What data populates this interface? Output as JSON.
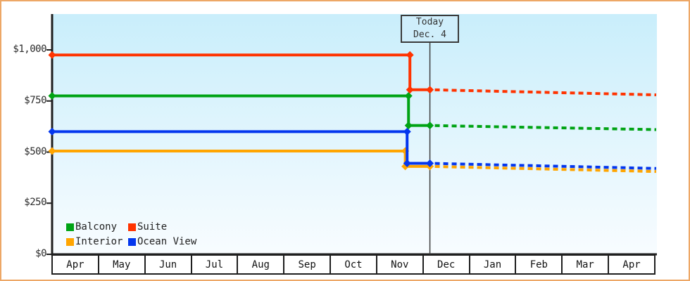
{
  "window": {
    "frame_border_color": "#eda766",
    "background_color": "#ffffff",
    "axis_color": "#1f1f1f",
    "today_line_color": "#3d3d3d"
  },
  "chart_data": {
    "type": "line",
    "title": "",
    "x_categories": [
      "Apr",
      "May",
      "Jun",
      "Jul",
      "Aug",
      "Sep",
      "Oct",
      "Nov",
      "Dec",
      "Jan",
      "Feb",
      "Mar",
      "Apr"
    ],
    "y_ticks": [
      {
        "value": 0,
        "label": "$0"
      },
      {
        "value": 250,
        "label": "$250"
      },
      {
        "value": 500,
        "label": "$500"
      },
      {
        "value": 750,
        "label": "$750"
      },
      {
        "value": 1000,
        "label": "$1,000"
      }
    ],
    "ylim": [
      0,
      1175
    ],
    "grid": false,
    "legend_position": "bottom-left",
    "plot_background": {
      "top": "#c9eefb",
      "bottom": "#f8fcff"
    },
    "today_annotation": {
      "line1": "Today",
      "line2": "Dec. 4",
      "month_position": 8.13
    },
    "series": [
      {
        "name": "Balcony",
        "color": "#00a314",
        "solid": [
          [
            0,
            775
          ],
          [
            7.67,
            775
          ],
          [
            7.67,
            630
          ],
          [
            8.13,
            630
          ]
        ],
        "forecast_dashed": [
          [
            8.13,
            630
          ],
          [
            13,
            610
          ]
        ]
      },
      {
        "name": "Suite",
        "color": "#ff3300",
        "solid": [
          [
            0,
            975
          ],
          [
            7.7,
            975
          ],
          [
            7.7,
            805
          ],
          [
            8.13,
            805
          ]
        ],
        "forecast_dashed": [
          [
            8.13,
            805
          ],
          [
            13,
            780
          ]
        ]
      },
      {
        "name": "Interior",
        "color": "#ffa500",
        "solid": [
          [
            0,
            505
          ],
          [
            7.6,
            505
          ],
          [
            7.6,
            430
          ],
          [
            8.13,
            430
          ]
        ],
        "forecast_dashed": [
          [
            8.13,
            430
          ],
          [
            13,
            405
          ]
        ]
      },
      {
        "name": "Ocean View",
        "color": "#0336ee",
        "solid": [
          [
            0,
            600
          ],
          [
            7.64,
            600
          ],
          [
            7.64,
            445
          ],
          [
            8.13,
            445
          ]
        ],
        "forecast_dashed": [
          [
            8.13,
            445
          ],
          [
            13,
            420
          ]
        ]
      }
    ]
  }
}
